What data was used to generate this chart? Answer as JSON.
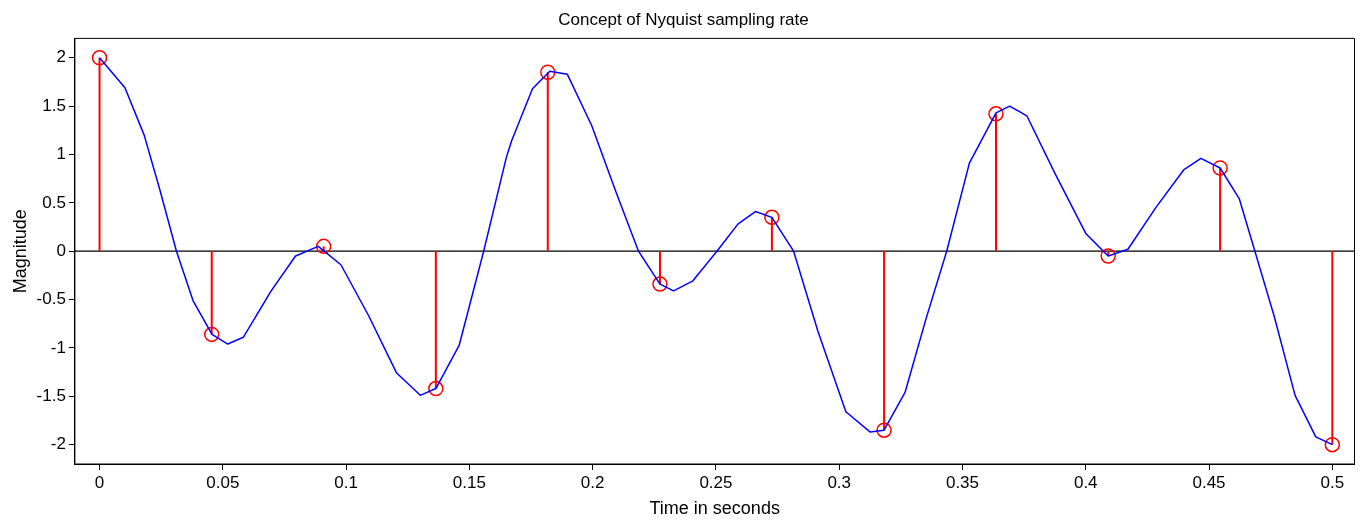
{
  "chart_data": {
    "type": "line",
    "title": "Concept of Nyquist sampling rate",
    "xlabel": "Time in seconds",
    "ylabel": "Magnitude",
    "xlim": [
      -0.01,
      0.509
    ],
    "ylim": [
      -2.2,
      2.2
    ],
    "xticks": [
      0,
      0.05,
      0.1,
      0.15,
      0.2,
      0.25,
      0.3,
      0.35,
      0.4,
      0.45,
      0.5
    ],
    "yticks": [
      -2,
      -1.5,
      -1,
      -0.5,
      0,
      0.5,
      1,
      1.5,
      2
    ],
    "grid": false,
    "legend": false,
    "ref_lines": [
      {
        "axis": "y",
        "value": 0,
        "color": "#000000"
      }
    ],
    "series": [
      {
        "type": "line",
        "color": "#0000ff",
        "marker": "none",
        "line_style": "solid",
        "x": [
          0,
          0.0103,
          0.0181,
          0.0244,
          0.0312,
          0.0379,
          0.0456,
          0.052,
          0.0583,
          0.0696,
          0.0795,
          0.0887,
          0.0979,
          0.1092,
          0.1205,
          0.1301,
          0.1364,
          0.1459,
          0.1558,
          0.165,
          0.1671,
          0.1756,
          0.1826,
          0.1897,
          0.1996,
          0.2095,
          0.2186,
          0.2273,
          0.2328,
          0.2405,
          0.2504,
          0.2589,
          0.266,
          0.2727,
          0.2815,
          0.2914,
          0.3027,
          0.3126,
          0.3182,
          0.3267,
          0.3352,
          0.3436,
          0.3528,
          0.3636,
          0.3691,
          0.3761,
          0.3874,
          0.4001,
          0.4091,
          0.4171,
          0.4284,
          0.4397,
          0.4467,
          0.4545,
          0.4623,
          0.4686,
          0.4764,
          0.4849,
          0.4933,
          0.5
        ],
        "values": [
          2,
          1.69,
          1.2,
          0.64,
          0,
          -0.51,
          -0.86,
          -0.96,
          -0.89,
          -0.41,
          -0.05,
          0.05,
          -0.14,
          -0.67,
          -1.26,
          -1.49,
          -1.42,
          -0.97,
          0,
          0.97,
          1.14,
          1.68,
          1.86,
          1.83,
          1.3,
          0.61,
          0,
          -0.34,
          -0.41,
          -0.31,
          0,
          0.28,
          0.41,
          0.35,
          0,
          -0.83,
          -1.66,
          -1.87,
          -1.85,
          -1.46,
          -0.7,
          0,
          0.91,
          1.43,
          1.5,
          1.4,
          0.81,
          0.18,
          -0.05,
          0.02,
          0.45,
          0.84,
          0.96,
          0.86,
          0.54,
          0,
          -0.67,
          -1.49,
          -1.92,
          -2
        ]
      },
      {
        "type": "lollipop",
        "color": "#ff0000",
        "marker": "circle",
        "x": [
          0,
          0.0455,
          0.0909,
          0.1364,
          0.1818,
          0.2273,
          0.2727,
          0.3182,
          0.3636,
          0.4091,
          0.4545,
          0.5
        ],
        "values": [
          2,
          -0.86,
          0.05,
          -1.42,
          1.85,
          -0.34,
          0.35,
          -1.85,
          1.42,
          -0.05,
          0.86,
          -2
        ]
      }
    ]
  }
}
